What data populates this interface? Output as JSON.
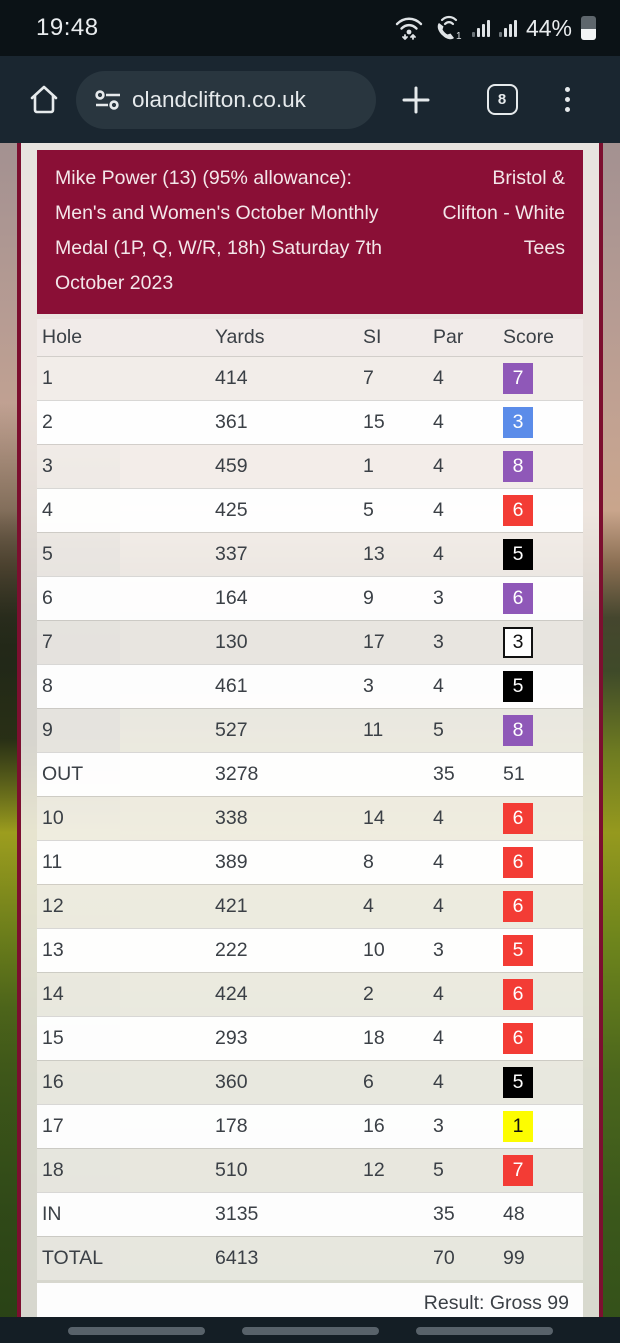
{
  "status_bar": {
    "time": "19:48",
    "battery_percent": "44%"
  },
  "browser": {
    "url": "olandclifton.co.uk",
    "tab_count": "8"
  },
  "scorecard": {
    "event_title": "Mike Power (13) (95% allowance): Men's and Women's October Monthly Medal (1P, Q, W/R, 18h) Saturday 7th October 2023",
    "venue": "Bristol & Clifton - White Tees",
    "columns": [
      "Hole",
      "Yards",
      "SI",
      "Par",
      "Score"
    ],
    "rows": [
      {
        "hole": "1",
        "yards": "414",
        "si": "7",
        "par": "4",
        "score": "7",
        "style": "purple"
      },
      {
        "hole": "2",
        "yards": "361",
        "si": "15",
        "par": "4",
        "score": "3",
        "style": "blue"
      },
      {
        "hole": "3",
        "yards": "459",
        "si": "1",
        "par": "4",
        "score": "8",
        "style": "purple"
      },
      {
        "hole": "4",
        "yards": "425",
        "si": "5",
        "par": "4",
        "score": "6",
        "style": "red"
      },
      {
        "hole": "5",
        "yards": "337",
        "si": "13",
        "par": "4",
        "score": "5",
        "style": "black"
      },
      {
        "hole": "6",
        "yards": "164",
        "si": "9",
        "par": "3",
        "score": "6",
        "style": "purple"
      },
      {
        "hole": "7",
        "yards": "130",
        "si": "17",
        "par": "3",
        "score": "3",
        "style": "white"
      },
      {
        "hole": "8",
        "yards": "461",
        "si": "3",
        "par": "4",
        "score": "5",
        "style": "black"
      },
      {
        "hole": "9",
        "yards": "527",
        "si": "11",
        "par": "5",
        "score": "8",
        "style": "purple"
      },
      {
        "hole": "OUT",
        "yards": "3278",
        "si": "",
        "par": "35",
        "score": "51",
        "style": "plain"
      },
      {
        "hole": "10",
        "yards": "338",
        "si": "14",
        "par": "4",
        "score": "6",
        "style": "red"
      },
      {
        "hole": "11",
        "yards": "389",
        "si": "8",
        "par": "4",
        "score": "6",
        "style": "red"
      },
      {
        "hole": "12",
        "yards": "421",
        "si": "4",
        "par": "4",
        "score": "6",
        "style": "red"
      },
      {
        "hole": "13",
        "yards": "222",
        "si": "10",
        "par": "3",
        "score": "5",
        "style": "red"
      },
      {
        "hole": "14",
        "yards": "424",
        "si": "2",
        "par": "4",
        "score": "6",
        "style": "red"
      },
      {
        "hole": "15",
        "yards": "293",
        "si": "18",
        "par": "4",
        "score": "6",
        "style": "red"
      },
      {
        "hole": "16",
        "yards": "360",
        "si": "6",
        "par": "4",
        "score": "5",
        "style": "black"
      },
      {
        "hole": "17",
        "yards": "178",
        "si": "16",
        "par": "3",
        "score": "1",
        "style": "yellow"
      },
      {
        "hole": "18",
        "yards": "510",
        "si": "12",
        "par": "5",
        "score": "7",
        "style": "red"
      },
      {
        "hole": "IN",
        "yards": "3135",
        "si": "",
        "par": "35",
        "score": "48",
        "style": "plain"
      },
      {
        "hole": "TOTAL",
        "yards": "6413",
        "si": "",
        "par": "70",
        "score": "99",
        "style": "plain"
      }
    ],
    "result": "Result: Gross 99",
    "colors": {
      "header_bg": "#8a0f36",
      "score_purple": "#8f58b8",
      "score_blue": "#5b8ce9",
      "score_red": "#f33c35",
      "score_black": "#000000",
      "score_yellow": "#fdfd00",
      "score_white": "#ffffff"
    }
  }
}
